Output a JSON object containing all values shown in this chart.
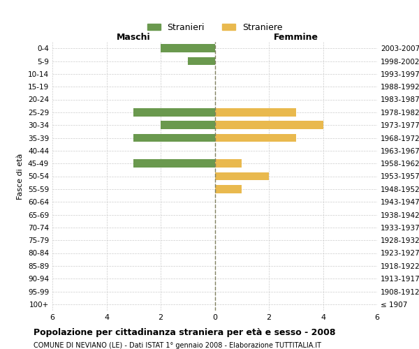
{
  "age_groups": [
    "100+",
    "95-99",
    "90-94",
    "85-89",
    "80-84",
    "75-79",
    "70-74",
    "65-69",
    "60-64",
    "55-59",
    "50-54",
    "45-49",
    "40-44",
    "35-39",
    "30-34",
    "25-29",
    "20-24",
    "15-19",
    "10-14",
    "5-9",
    "0-4"
  ],
  "birth_years": [
    "≤ 1907",
    "1908-1912",
    "1913-1917",
    "1918-1922",
    "1923-1927",
    "1928-1932",
    "1933-1937",
    "1938-1942",
    "1943-1947",
    "1948-1952",
    "1953-1957",
    "1958-1962",
    "1963-1967",
    "1968-1972",
    "1973-1977",
    "1978-1982",
    "1983-1987",
    "1988-1992",
    "1993-1997",
    "1998-2002",
    "2003-2007"
  ],
  "males": [
    0,
    0,
    0,
    0,
    0,
    0,
    0,
    0,
    0,
    0,
    0,
    3,
    0,
    3,
    2,
    3,
    0,
    0,
    0,
    1,
    2
  ],
  "females": [
    0,
    0,
    0,
    0,
    0,
    0,
    0,
    0,
    0,
    1,
    2,
    1,
    0,
    3,
    4,
    3,
    0,
    0,
    0,
    0,
    0
  ],
  "male_color": "#6a994e",
  "female_color": "#e9b94e",
  "title": "Popolazione per cittadinanza straniera per età e sesso - 2008",
  "subtitle": "COMUNE DI NEVIANO (LE) - Dati ISTAT 1° gennaio 2008 - Elaborazione TUTTITALIA.IT",
  "xlabel_left": "Maschi",
  "xlabel_right": "Femmine",
  "ylabel_left": "Fasce di età",
  "legend_male": "Stranieri",
  "legend_female": "Straniere",
  "xlim": 6,
  "bg_color": "#ffffff",
  "grid_color": "#cccccc",
  "center_line_color": "#808060"
}
